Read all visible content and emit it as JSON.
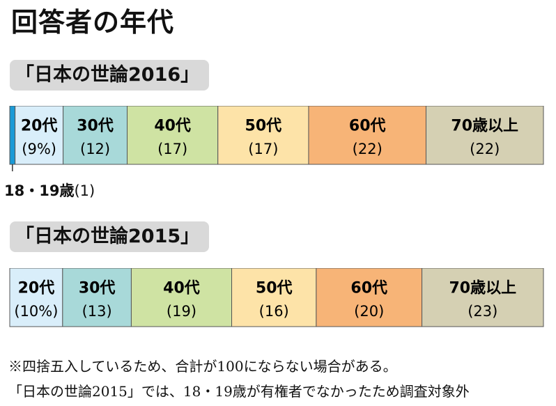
{
  "title": "回答者の年代",
  "chart_data": [
    {
      "type": "bar",
      "stacked": true,
      "orientation": "horizontal",
      "label": "「日本の世論2016」",
      "unit": "%",
      "segments": [
        {
          "category": "18・19歳",
          "value": 1,
          "label": "18・19歳",
          "value_text": "(1)",
          "color": "#1b9ad6"
        },
        {
          "category": "20代",
          "value": 9,
          "label": "20代",
          "value_text": "(9%)",
          "color": "#d9eefa"
        },
        {
          "category": "30代",
          "value": 12,
          "label": "30代",
          "value_text": "(12)",
          "color": "#a8d9d9"
        },
        {
          "category": "40代",
          "value": 17,
          "label": "40代",
          "value_text": "(17)",
          "color": "#cfe3a3"
        },
        {
          "category": "50代",
          "value": 17,
          "label": "50代",
          "value_text": "(17)",
          "color": "#fde3a8"
        },
        {
          "category": "60代",
          "value": 22,
          "label": "60代",
          "value_text": "(22)",
          "color": "#f7b477"
        },
        {
          "category": "70歳以上",
          "value": 22,
          "label": "70歳以上",
          "value_text": "(22)",
          "color": "#d5d0b3"
        }
      ]
    },
    {
      "type": "bar",
      "stacked": true,
      "orientation": "horizontal",
      "label": "「日本の世論2015」",
      "unit": "%",
      "segments": [
        {
          "category": "20代",
          "value": 10,
          "label": "20代",
          "value_text": "(10%)",
          "color": "#d9eefa"
        },
        {
          "category": "30代",
          "value": 13,
          "label": "30代",
          "value_text": "(13)",
          "color": "#a8d9d9"
        },
        {
          "category": "40代",
          "value": 19,
          "label": "40代",
          "value_text": "(19)",
          "color": "#cfe3a3"
        },
        {
          "category": "50代",
          "value": 16,
          "label": "50代",
          "value_text": "(16)",
          "color": "#fde3a8"
        },
        {
          "category": "60代",
          "value": 20,
          "label": "60代",
          "value_text": "(20)",
          "color": "#f7b477"
        },
        {
          "category": "70歳以上",
          "value": 23,
          "label": "70歳以上",
          "value_text": "(23)",
          "color": "#d5d0b3"
        }
      ]
    }
  ],
  "callout_2016": {
    "label": "18・19歳",
    "value_text": "(1)"
  },
  "notes": [
    "※四捨五入しているため、合計が100にならない場合がある。",
    "「日本の世論2015」では、18・19歳が有権者でなかったため調査対象外"
  ]
}
